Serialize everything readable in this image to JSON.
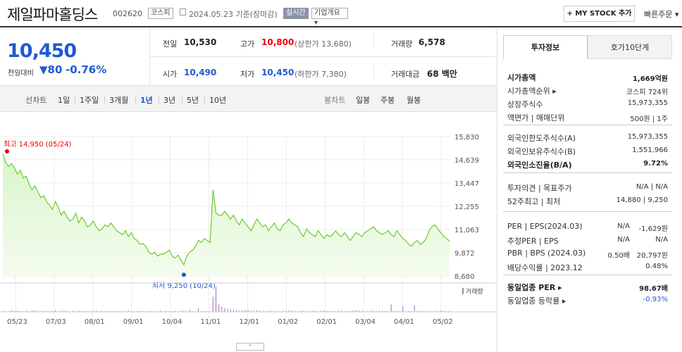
{
  "header": {
    "title": "제일파마홀딩스",
    "code": "002620",
    "market_badge": "코스피",
    "date": "2024.05.23 기준(장마감)",
    "realtime_badge": "실시간",
    "company_badge": "기업개요 ▾",
    "mystock_label": "+ MY STOCK 추가",
    "fast_order": "빠른주문 ▾"
  },
  "price": {
    "current": "10,450",
    "change_label": "전일대비",
    "change_value": "▼80",
    "change_pct": "-0.76%"
  },
  "summary": {
    "prev_l": "전일",
    "prev_v": "10,530",
    "high_l": "고가",
    "high_v": "10,800",
    "upper": "(상한가 13,680)",
    "vol_l": "거래량",
    "vol_v": "6,578",
    "open_l": "시가",
    "open_v": "10,490",
    "low_l": "저가",
    "low_v": "10,450",
    "lower": "(하한가 7,380)",
    "amt_l": "거래대금",
    "amt_v": "68 백만"
  },
  "periods": {
    "line_label": "선차트",
    "items": [
      "1일",
      "1주일",
      "3개월",
      "1년",
      "3년",
      "5년",
      "10년"
    ],
    "candle_label": "봉차트",
    "candle_items": [
      "일봉",
      "주봉",
      "월봉"
    ]
  },
  "chart_data": {
    "type": "area",
    "title": "",
    "y_ticks": [
      "15,830",
      "14,639",
      "13,447",
      "12,255",
      "11,063",
      "9,872",
      "8,680"
    ],
    "ylim": [
      8680,
      15830
    ],
    "x_ticks": [
      "05/23",
      "07/03",
      "08/01",
      "09/01",
      "10/04",
      "11/01",
      "12/01",
      "01/02",
      "02/01",
      "03/04",
      "04/01",
      "05/02"
    ],
    "max_label": "최고 14,950 (05/24)",
    "min_label": "최저 9,250 (10/24)",
    "volume_label": "거래량",
    "values": [
      14950,
      14500,
      14300,
      14450,
      14200,
      13900,
      14100,
      13700,
      13800,
      13400,
      13100,
      13300,
      13000,
      12700,
      12800,
      12500,
      12300,
      12100,
      12500,
      12200,
      11800,
      12000,
      11700,
      11500,
      11600,
      11900,
      11400,
      11700,
      11500,
      11200,
      11300,
      11500,
      11200,
      11000,
      11100,
      11300,
      11200,
      11400,
      11200,
      11000,
      10900,
      10800,
      11000,
      10700,
      10900,
      10600,
      10500,
      10300,
      10350,
      10200,
      9900,
      9800,
      9900,
      9700,
      9800,
      9800,
      9900,
      10000,
      9700,
      9600,
      9750,
      9500,
      9250,
      9700,
      9900,
      10000,
      10200,
      10500,
      10400,
      10600,
      10500,
      10400,
      13100,
      11900,
      11800,
      11800,
      12000,
      11800,
      11600,
      11800,
      11500,
      11300,
      11600,
      11400,
      11200,
      11000,
      11300,
      11600,
      11400,
      11200,
      11300,
      11000,
      11200,
      11400,
      11100,
      11000,
      11300,
      11400,
      11600,
      11400,
      11300,
      11200,
      10900,
      10700,
      11100,
      10900,
      10800,
      10700,
      11000,
      10800,
      10600,
      10800,
      10700,
      10800,
      11000,
      10800,
      10700,
      10900,
      10700,
      10500,
      10700,
      10900,
      10800,
      10700,
      10900,
      11000,
      11100,
      11200,
      11000,
      10900,
      10800,
      10900,
      11000,
      10800,
      10700,
      11000,
      10800,
      10600,
      10500,
      10300,
      10200,
      10400,
      10500,
      10300,
      10400,
      10600,
      11000,
      11200,
      11300,
      11100,
      10900,
      10700,
      10600,
      10450
    ],
    "volume": [
      3,
      4,
      3,
      6,
      4,
      5,
      3,
      2,
      4,
      3,
      5,
      6,
      4,
      3,
      5,
      4,
      3,
      4,
      6,
      3,
      4,
      5,
      3,
      2,
      4,
      3,
      5,
      4,
      3,
      2,
      3,
      4,
      5,
      3,
      4,
      3,
      2,
      3,
      4,
      3,
      2,
      3,
      4,
      5,
      3,
      2,
      3,
      4,
      3,
      2,
      3,
      4,
      3,
      2,
      5,
      3,
      4,
      3,
      2,
      4,
      3,
      5,
      4,
      3,
      8,
      3,
      2,
      14,
      4,
      3,
      2,
      3,
      60,
      100,
      30,
      20,
      15,
      12,
      10,
      8,
      6,
      5,
      6,
      7,
      8,
      5,
      4,
      6,
      5,
      4,
      3,
      5,
      4,
      3,
      4,
      3,
      5,
      4,
      6,
      5,
      4,
      3,
      4,
      5,
      4,
      3,
      5,
      4,
      3,
      4,
      5,
      4,
      3,
      4,
      3,
      5,
      4,
      3,
      4,
      3,
      5,
      6,
      5,
      4,
      3,
      4,
      5,
      4,
      3,
      4,
      5,
      4,
      3,
      30,
      5,
      4,
      3,
      22,
      3,
      4,
      3,
      25,
      5,
      4,
      3,
      4,
      3,
      2,
      4,
      3,
      5,
      4,
      3,
      4
    ],
    "vol_max": 100
  },
  "right": {
    "tab1": "투자정보",
    "tab2": "호가10단계",
    "rows1": [
      {
        "l": "시가총액",
        "v": "1,669억원",
        "bold": true
      },
      {
        "l": "시가총액순위 ▸",
        "v": "코스피 724위"
      },
      {
        "l": "상장주식수",
        "v": "15,973,355"
      },
      {
        "l": "액면가 | 매매단위",
        "v": "500원 | 1주"
      }
    ],
    "rows2": [
      {
        "l": "외국인한도주식수(A)",
        "v": "15,973,355"
      },
      {
        "l": "외국인보유주식수(B)",
        "v": "1,551,966"
      },
      {
        "l": "외국인소진율(B/A)",
        "v": "9.72%",
        "bold": true
      }
    ],
    "rows3": [
      {
        "l": "투자의견 | 목표주가",
        "v": "N/A | N/A"
      },
      {
        "l": "52주최고 | 최저",
        "v": "14,880 | 9,250"
      }
    ],
    "rows4": [
      {
        "l": "PER | EPS(2024.03)",
        "v1": "N/A",
        "v": "-1,629원"
      },
      {
        "l": "추정PER | EPS",
        "v1": "N/A",
        "v": "N/A"
      },
      {
        "l": "PBR | BPS (2024.03)",
        "v1": "0.50배",
        "v": "20,797원"
      },
      {
        "l": "배당수익률 | 2023.12",
        "v1": "",
        "v": "0.48%"
      }
    ],
    "rows5": [
      {
        "l": "동일업종 PER ▸",
        "v": "98.67배",
        "bold": true
      },
      {
        "l": "동일업종 등락률 ▸",
        "v": "-0.93%",
        "blue": true
      }
    ]
  },
  "fold_label": "⌃"
}
